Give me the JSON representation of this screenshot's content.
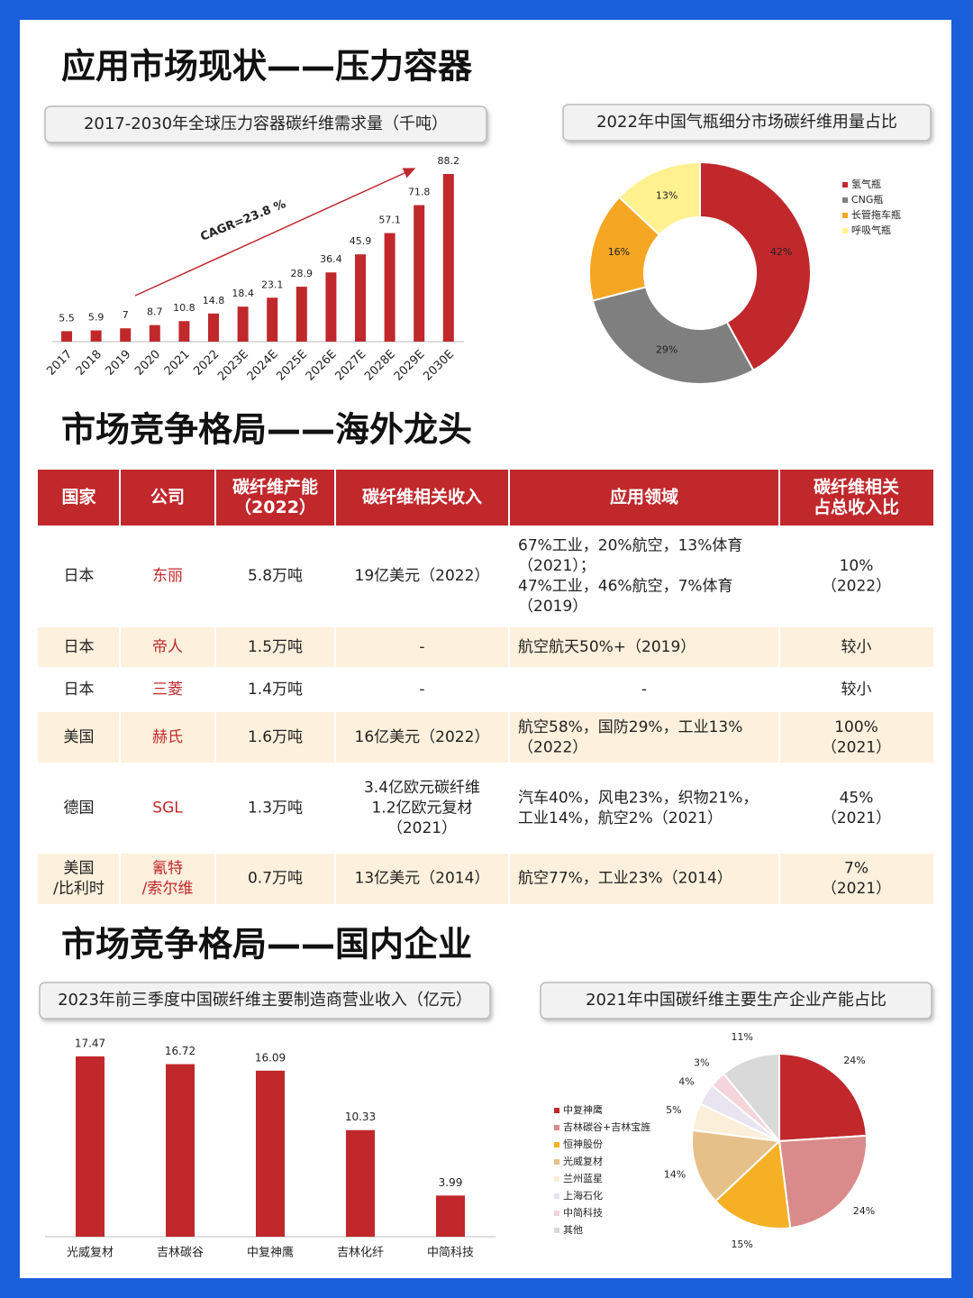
{
  "sections": [
    {
      "title": "应用市场现状——压力容器"
    },
    {
      "title": "市场竞争格局——海外龙头"
    },
    {
      "title": "市场竞争格局——国内企业"
    }
  ],
  "chart_data": [
    {
      "type": "bar",
      "title": "2017-2030年全球压力容器碳纤维需求量（千吨）",
      "categories": [
        "2017",
        "2018",
        "2019",
        "2020",
        "2021",
        "2022",
        "2023E",
        "2024E",
        "2025E",
        "2026E",
        "2027E",
        "2028E",
        "2029E",
        "2030E"
      ],
      "values": [
        5.5,
        5.9,
        7,
        8.7,
        10.8,
        14.8,
        18.4,
        23.1,
        28.9,
        36.4,
        45.9,
        57.1,
        71.8,
        88.2
      ],
      "color": "#c0282c",
      "annotation": "CAGR=23.8 %"
    },
    {
      "type": "donut",
      "title": "2022年中国气瓶细分市场碳纤维用量占比",
      "categories": [
        "氢气瓶",
        "CNG瓶",
        "长管拖车瓶",
        "呼吸气瓶"
      ],
      "values": [
        42,
        29,
        16,
        13
      ],
      "value_labels": [
        "42%",
        "29%",
        "16%",
        "13%"
      ],
      "colors": [
        "#c0282c",
        "#7f7f7f",
        "#f5a623",
        "#fff18f"
      ]
    },
    {
      "type": "bar",
      "title": "2023年前三季度中国碳纤维主要制造商营业收入（亿元）",
      "categories": [
        "光威复材",
        "吉林碳谷",
        "中复神鹰",
        "吉林化纤",
        "中简科技"
      ],
      "values": [
        17.47,
        16.72,
        16.09,
        10.33,
        3.99
      ],
      "color": "#c0282c"
    },
    {
      "type": "pie",
      "title": "2021年中国碳纤维主要生产企业产能占比",
      "categories": [
        "中复神鹰",
        "吉林碳谷+吉林宝旌",
        "恒神股份",
        "光威复材",
        "兰州蓝星",
        "上海石化",
        "中简科技",
        "其他"
      ],
      "values": [
        24,
        24,
        15,
        14,
        5,
        4,
        3,
        11
      ],
      "value_labels": [
        "24%",
        "24%",
        "15%",
        "14%",
        "5%",
        "4%",
        "3%",
        "11%"
      ],
      "colors": [
        "#c0282c",
        "#d98b8b",
        "#f5b026",
        "#e6c089",
        "#fbefd9",
        "#e9e5f0",
        "#f4d5db",
        "#d9d9d9"
      ]
    }
  ],
  "table": {
    "header": [
      [
        "国家"
      ],
      [
        "公司"
      ],
      [
        "碳纤维产能",
        "（2022）"
      ],
      [
        "碳纤维相关收入"
      ],
      [
        "应用领域"
      ],
      [
        "碳纤维相关",
        "占总收入比"
      ]
    ],
    "rows": [
      [
        [
          "日本"
        ],
        [
          "东丽"
        ],
        [
          "5.8万吨"
        ],
        [
          "19亿美元（2022）"
        ],
        [
          "67%工业，20%航空，13%体育",
          "（2021）；",
          "47%工业，46%航空，7%体育",
          "（2019）"
        ],
        [
          "10%",
          "（2022）"
        ]
      ],
      [
        [
          "日本"
        ],
        [
          "帝人"
        ],
        [
          "1.5万吨"
        ],
        [
          "-"
        ],
        [
          "航空航天50%+（2019）"
        ],
        [
          "较小"
        ]
      ],
      [
        [
          "日本"
        ],
        [
          "三菱"
        ],
        [
          "1.4万吨"
        ],
        [
          "-"
        ],
        [
          "-"
        ],
        [
          "较小"
        ]
      ],
      [
        [
          "美国"
        ],
        [
          "赫氏"
        ],
        [
          "1.6万吨"
        ],
        [
          "16亿美元（2022）"
        ],
        [
          "航空58%，国防29%，工业13%",
          "（2022）"
        ],
        [
          "100%",
          "（2021）"
        ]
      ],
      [
        [
          "德国"
        ],
        [
          "SGL"
        ],
        [
          "1.3万吨"
        ],
        [
          "3.4亿欧元碳纤维",
          "1.2亿欧元复材",
          "（2021）"
        ],
        [
          "汽车40%，风电23%，织物21%，",
          "工业14%，航空2%（2021）"
        ],
        [
          "45%",
          "（2021）"
        ]
      ],
      [
        [
          "美国",
          "/比利时"
        ],
        [
          "氰特",
          "/索尔维"
        ],
        [
          "0.7万吨"
        ],
        [
          "13亿美元（2014）"
        ],
        [
          "航空77%，工业23%（2014）"
        ],
        [
          "7%",
          "（2021）"
        ]
      ]
    ]
  }
}
